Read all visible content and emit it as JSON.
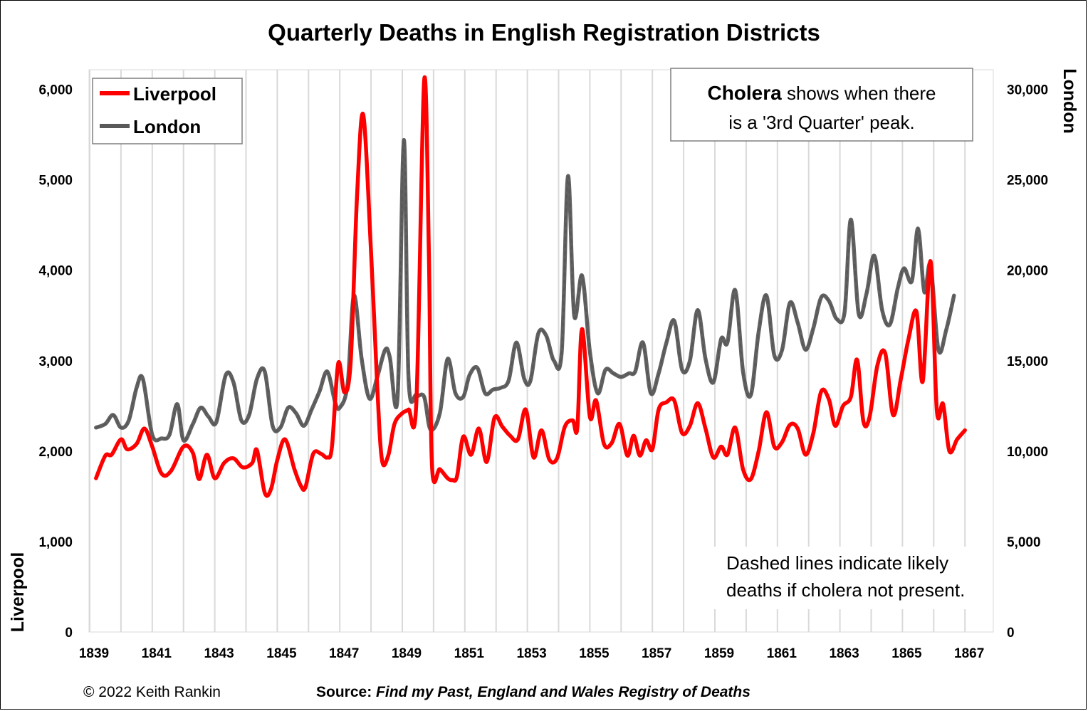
{
  "chart_data": {
    "type": "line",
    "title": "Quarterly Deaths in English Registration Districts",
    "y_left_label": "Liverpool",
    "y_right_label": "London",
    "x_ticks": [
      "1839",
      "1841",
      "1843",
      "1845",
      "1847",
      "1849",
      "1851",
      "1853",
      "1855",
      "1857",
      "1859",
      "1861",
      "1863",
      "1865",
      "1867"
    ],
    "y_left_ticks": [
      "0",
      "1,000",
      "2,000",
      "3,000",
      "4,000",
      "5,000",
      "6,000"
    ],
    "y_right_ticks": [
      "0",
      "5,000",
      "10,000",
      "15,000",
      "20,000",
      "25,000",
      "30,000"
    ],
    "y_left_range": [
      0,
      6000
    ],
    "y_right_range": [
      0,
      30000
    ],
    "x_range": [
      1839,
      1868
    ],
    "grid": "vertical",
    "legend_position": "top-left",
    "series": [
      {
        "name": "Liverpool",
        "axis": "left",
        "color": "#ff0000",
        "points": [
          [
            1839.2,
            1700
          ],
          [
            1839.5,
            1950
          ],
          [
            1839.7,
            1960
          ],
          [
            1840.0,
            2130
          ],
          [
            1840.2,
            2020
          ],
          [
            1840.5,
            2080
          ],
          [
            1840.75,
            2250
          ],
          [
            1841.0,
            2050
          ],
          [
            1841.3,
            1750
          ],
          [
            1841.6,
            1780
          ],
          [
            1842.0,
            2050
          ],
          [
            1842.3,
            1980
          ],
          [
            1842.5,
            1690
          ],
          [
            1842.75,
            1960
          ],
          [
            1843.0,
            1700
          ],
          [
            1843.3,
            1870
          ],
          [
            1843.6,
            1920
          ],
          [
            1843.9,
            1820
          ],
          [
            1844.2,
            1870
          ],
          [
            1844.35,
            2010
          ],
          [
            1844.6,
            1540
          ],
          [
            1844.8,
            1580
          ],
          [
            1845.0,
            1900
          ],
          [
            1845.25,
            2130
          ],
          [
            1845.55,
            1800
          ],
          [
            1845.75,
            1620
          ],
          [
            1845.9,
            1600
          ],
          [
            1846.15,
            1970
          ],
          [
            1846.4,
            1970
          ],
          [
            1846.6,
            1930
          ],
          [
            1846.75,
            2050
          ],
          [
            1846.95,
            2970
          ],
          [
            1847.15,
            2650
          ],
          [
            1847.35,
            3000
          ],
          [
            1847.55,
            4800
          ],
          [
            1847.75,
            5720
          ],
          [
            1848.0,
            4200
          ],
          [
            1848.2,
            2700
          ],
          [
            1848.35,
            1900
          ],
          [
            1848.55,
            1950
          ],
          [
            1848.75,
            2300
          ],
          [
            1849.0,
            2420
          ],
          [
            1849.2,
            2460
          ],
          [
            1849.45,
            2550
          ],
          [
            1849.7,
            6100
          ],
          [
            1849.85,
            4200
          ],
          [
            1849.95,
            1840
          ],
          [
            1850.2,
            1800
          ],
          [
            1850.45,
            1700
          ],
          [
            1850.6,
            1680
          ],
          [
            1850.75,
            1720
          ],
          [
            1850.95,
            2160
          ],
          [
            1851.2,
            1960
          ],
          [
            1851.45,
            2250
          ],
          [
            1851.7,
            1880
          ],
          [
            1851.95,
            2370
          ],
          [
            1852.2,
            2270
          ],
          [
            1852.45,
            2170
          ],
          [
            1852.7,
            2130
          ],
          [
            1852.95,
            2460
          ],
          [
            1853.2,
            1930
          ],
          [
            1853.45,
            2230
          ],
          [
            1853.7,
            1910
          ],
          [
            1853.95,
            1920
          ],
          [
            1854.2,
            2270
          ],
          [
            1854.45,
            2340
          ],
          [
            1854.6,
            2260
          ],
          [
            1854.75,
            3350
          ],
          [
            1855.0,
            2380
          ],
          [
            1855.2,
            2560
          ],
          [
            1855.45,
            2080
          ],
          [
            1855.7,
            2090
          ],
          [
            1855.95,
            2300
          ],
          [
            1856.2,
            1950
          ],
          [
            1856.4,
            2170
          ],
          [
            1856.6,
            1950
          ],
          [
            1856.8,
            2120
          ],
          [
            1857.0,
            2020
          ],
          [
            1857.2,
            2460
          ],
          [
            1857.45,
            2540
          ],
          [
            1857.7,
            2560
          ],
          [
            1857.95,
            2200
          ],
          [
            1858.2,
            2280
          ],
          [
            1858.45,
            2530
          ],
          [
            1858.7,
            2250
          ],
          [
            1858.95,
            1930
          ],
          [
            1859.2,
            2050
          ],
          [
            1859.4,
            1960
          ],
          [
            1859.65,
            2260
          ],
          [
            1859.9,
            1800
          ],
          [
            1860.15,
            1690
          ],
          [
            1860.4,
            2000
          ],
          [
            1860.65,
            2430
          ],
          [
            1860.9,
            2050
          ],
          [
            1861.15,
            2100
          ],
          [
            1861.4,
            2290
          ],
          [
            1861.65,
            2250
          ],
          [
            1861.9,
            1960
          ],
          [
            1862.15,
            2200
          ],
          [
            1862.4,
            2660
          ],
          [
            1862.65,
            2570
          ],
          [
            1862.85,
            2280
          ],
          [
            1863.1,
            2500
          ],
          [
            1863.35,
            2600
          ],
          [
            1863.55,
            3010
          ],
          [
            1863.75,
            2330
          ],
          [
            1863.95,
            2380
          ],
          [
            1864.2,
            2950
          ],
          [
            1864.45,
            3080
          ],
          [
            1864.7,
            2400
          ],
          [
            1864.95,
            2800
          ],
          [
            1865.2,
            3250
          ],
          [
            1865.45,
            3540
          ],
          [
            1865.65,
            2770
          ],
          [
            1865.9,
            4100
          ],
          [
            1866.1,
            2450
          ],
          [
            1866.3,
            2520
          ],
          [
            1866.5,
            2000
          ],
          [
            1866.75,
            2130
          ],
          [
            1867.0,
            2230
          ]
        ]
      },
      {
        "name": "London",
        "axis": "right",
        "color": "#595959",
        "points": [
          [
            1839.2,
            11300
          ],
          [
            1839.5,
            11500
          ],
          [
            1839.75,
            12000
          ],
          [
            1840.0,
            11300
          ],
          [
            1840.25,
            11700
          ],
          [
            1840.5,
            13500
          ],
          [
            1840.7,
            14000
          ],
          [
            1841.0,
            10900
          ],
          [
            1841.3,
            10700
          ],
          [
            1841.55,
            10900
          ],
          [
            1841.8,
            12600
          ],
          [
            1842.0,
            10600
          ],
          [
            1842.3,
            11500
          ],
          [
            1842.55,
            12400
          ],
          [
            1842.8,
            11900
          ],
          [
            1843.05,
            11600
          ],
          [
            1843.35,
            14200
          ],
          [
            1843.6,
            13800
          ],
          [
            1843.85,
            11700
          ],
          [
            1844.1,
            12000
          ],
          [
            1844.35,
            14000
          ],
          [
            1844.6,
            14400
          ],
          [
            1844.85,
            11400
          ],
          [
            1845.1,
            11300
          ],
          [
            1845.35,
            12400
          ],
          [
            1845.6,
            12100
          ],
          [
            1845.85,
            11400
          ],
          [
            1846.1,
            12300
          ],
          [
            1846.35,
            13300
          ],
          [
            1846.6,
            14400
          ],
          [
            1846.85,
            12700
          ],
          [
            1847.0,
            12400
          ],
          [
            1847.25,
            13700
          ],
          [
            1847.45,
            18600
          ],
          [
            1847.7,
            15100
          ],
          [
            1847.95,
            12900
          ],
          [
            1848.2,
            14100
          ],
          [
            1848.45,
            15600
          ],
          [
            1848.6,
            15200
          ],
          [
            1848.85,
            13000
          ],
          [
            1849.05,
            27200
          ],
          [
            1849.2,
            14000
          ],
          [
            1849.45,
            13100
          ],
          [
            1849.7,
            13000
          ],
          [
            1849.9,
            11200
          ],
          [
            1850.2,
            12100
          ],
          [
            1850.45,
            15100
          ],
          [
            1850.7,
            13200
          ],
          [
            1850.95,
            13000
          ],
          [
            1851.15,
            14200
          ],
          [
            1851.4,
            14600
          ],
          [
            1851.65,
            13200
          ],
          [
            1851.9,
            13400
          ],
          [
            1852.15,
            13500
          ],
          [
            1852.4,
            13900
          ],
          [
            1852.65,
            16000
          ],
          [
            1852.9,
            14000
          ],
          [
            1853.1,
            13900
          ],
          [
            1853.35,
            16500
          ],
          [
            1853.6,
            16400
          ],
          [
            1853.85,
            15000
          ],
          [
            1854.1,
            15500
          ],
          [
            1854.3,
            25200
          ],
          [
            1854.5,
            17500
          ],
          [
            1854.75,
            19700
          ],
          [
            1855.0,
            15500
          ],
          [
            1855.25,
            13200
          ],
          [
            1855.5,
            14500
          ],
          [
            1855.75,
            14300
          ],
          [
            1856.0,
            14100
          ],
          [
            1856.25,
            14300
          ],
          [
            1856.45,
            14400
          ],
          [
            1856.7,
            16000
          ],
          [
            1856.95,
            13200
          ],
          [
            1857.2,
            14300
          ],
          [
            1857.45,
            16000
          ],
          [
            1857.7,
            17200
          ],
          [
            1857.95,
            14500
          ],
          [
            1858.2,
            15000
          ],
          [
            1858.45,
            17800
          ],
          [
            1858.7,
            15100
          ],
          [
            1858.95,
            13800
          ],
          [
            1859.2,
            16200
          ],
          [
            1859.4,
            16000
          ],
          [
            1859.65,
            18900
          ],
          [
            1859.9,
            14400
          ],
          [
            1860.15,
            13100
          ],
          [
            1860.4,
            16600
          ],
          [
            1860.65,
            18600
          ],
          [
            1860.9,
            15300
          ],
          [
            1861.15,
            15600
          ],
          [
            1861.4,
            18200
          ],
          [
            1861.65,
            17100
          ],
          [
            1861.9,
            15600
          ],
          [
            1862.15,
            16800
          ],
          [
            1862.4,
            18500
          ],
          [
            1862.65,
            18300
          ],
          [
            1862.9,
            17300
          ],
          [
            1863.15,
            17700
          ],
          [
            1863.35,
            22800
          ],
          [
            1863.6,
            17600
          ],
          [
            1863.85,
            18700
          ],
          [
            1864.1,
            20800
          ],
          [
            1864.35,
            17800
          ],
          [
            1864.6,
            17000
          ],
          [
            1864.85,
            19000
          ],
          [
            1865.05,
            20100
          ],
          [
            1865.3,
            19400
          ],
          [
            1865.5,
            22300
          ],
          [
            1865.7,
            18800
          ],
          [
            1865.9,
            20300
          ],
          [
            1866.15,
            15600
          ],
          [
            1866.4,
            16700
          ],
          [
            1866.65,
            18600
          ]
        ]
      }
    ]
  },
  "legend": {
    "items": [
      {
        "label": "Liverpool",
        "color": "#ff0000"
      },
      {
        "label": "London",
        "color": "#595959"
      }
    ]
  },
  "annotations": {
    "cholera_bold": "Cholera",
    "cholera_rest_1": " shows when there",
    "cholera_line_2": "is a '3rd Quarter' peak.",
    "dashed_line_1": "Dashed lines indicate likely",
    "dashed_line_2": "deaths if cholera not present."
  },
  "footer": {
    "copyright": "© 2022 Keith Rankin",
    "source_label": "Source:",
    "source_text": "Find my Past, England and Wales Registry of Deaths"
  }
}
